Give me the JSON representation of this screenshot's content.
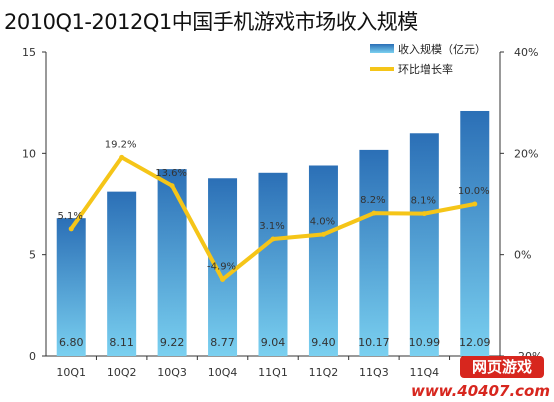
{
  "title": "2010Q1-2012Q1中国手机游戏市场收入规模",
  "chart_data": {
    "type": "bar+line",
    "categories": [
      "10Q1",
      "10Q2",
      "10Q3",
      "10Q4",
      "11Q1",
      "11Q2",
      "11Q3",
      "11Q4",
      "12Q1"
    ],
    "bar_series": {
      "name": "收入规模（亿元）",
      "values": [
        6.8,
        8.11,
        9.22,
        8.77,
        9.04,
        9.4,
        10.17,
        10.99,
        12.09
      ],
      "labels": [
        "6.80",
        "8.11",
        "9.22",
        "8.77",
        "9.04",
        "9.40",
        "10.17",
        "10.99",
        "12.09"
      ]
    },
    "line_series": {
      "name": "环比增长率",
      "values": [
        5.1,
        19.2,
        13.6,
        -4.9,
        3.1,
        4.0,
        8.2,
        8.1,
        10.0
      ],
      "labels": [
        "5.1%",
        "19.2%",
        "13.6%",
        "-4.9%",
        "3.1%",
        "4.0%",
        "8.2%",
        "8.1%",
        "10.0%"
      ]
    },
    "y_left": {
      "ylim": [
        0,
        15
      ],
      "ticks": [
        "0",
        "5",
        "10",
        "15"
      ]
    },
    "y_right": {
      "ylim": [
        -20,
        40
      ],
      "ticks": [
        "-20%",
        "0%",
        "20%",
        "40%"
      ],
      "unit": "%"
    },
    "colors": {
      "bar_top": "#2b6fb6",
      "bar_bottom": "#7ad0f0",
      "line": "#f5c518",
      "axis": "#333333"
    },
    "legend_position": "top-right",
    "grid": false
  },
  "watermark": {
    "line1": "网页游戏",
    "line2": "www.40407.com"
  }
}
